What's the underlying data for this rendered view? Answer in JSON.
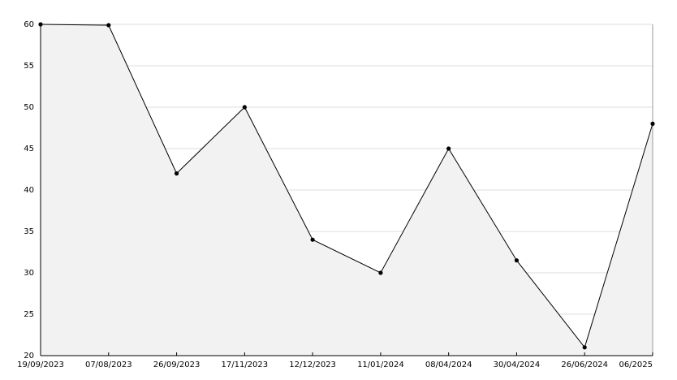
{
  "chart_data": {
    "type": "area",
    "categories": [
      "19/09/2023",
      "07/08/2023",
      "26/09/2023",
      "17/11/2023",
      "12/12/2023",
      "11/01/2024",
      "08/04/2024",
      "30/04/2024",
      "26/06/2024",
      "06/2025"
    ],
    "values": [
      60,
      59.9,
      42,
      50,
      34,
      30,
      45,
      31.5,
      21,
      48
    ],
    "color": "#000000",
    "fill": "#f2f2f2",
    "ylim": [
      20,
      60
    ],
    "yticks": [
      20,
      25,
      30,
      35,
      40,
      45,
      50,
      55,
      60
    ],
    "grid": true
  }
}
